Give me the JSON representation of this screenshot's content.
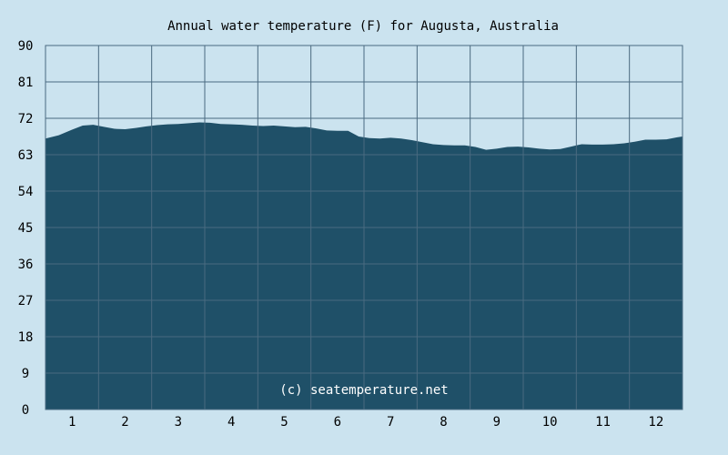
{
  "chart_data": {
    "type": "area",
    "title": "Annual water temperature (F) for Augusta, Australia",
    "xlabel": "",
    "ylabel": "",
    "ylim": [
      0,
      90
    ],
    "yticks": [
      "0",
      "9",
      "18",
      "27",
      "36",
      "45",
      "54",
      "63",
      "72",
      "81",
      "90"
    ],
    "xticks": [
      "1",
      "2",
      "3",
      "4",
      "5",
      "6",
      "7",
      "8",
      "9",
      "10",
      "11",
      "12"
    ],
    "xlim": [
      0.5,
      12.5
    ],
    "grid": true,
    "series": [
      {
        "x": [
          0.5,
          0.75,
          1.0,
          1.2,
          1.4,
          1.6,
          1.8,
          2.0,
          2.2,
          2.4,
          2.6,
          2.8,
          3.0,
          3.2,
          3.4,
          3.6,
          3.8,
          4.0,
          4.2,
          4.4,
          4.6,
          4.8,
          5.0,
          5.2,
          5.4,
          5.6,
          5.8,
          6.0,
          6.2,
          6.4,
          6.6,
          6.8,
          7.0,
          7.2,
          7.4,
          7.6,
          7.8,
          8.0,
          8.2,
          8.4,
          8.6,
          8.8,
          9.0,
          9.2,
          9.4,
          9.6,
          9.8,
          10.0,
          10.2,
          10.4,
          10.6,
          10.8,
          11.0,
          11.2,
          11.4,
          11.6,
          11.8,
          12.0,
          12.2,
          12.4,
          12.5
        ],
        "values": [
          67.0,
          67.8,
          69.2,
          70.2,
          70.4,
          69.9,
          69.4,
          69.3,
          69.6,
          70.0,
          70.3,
          70.5,
          70.6,
          70.8,
          71.0,
          70.9,
          70.6,
          70.5,
          70.4,
          70.2,
          70.1,
          70.2,
          70.0,
          69.8,
          69.9,
          69.5,
          69.0,
          68.9,
          68.9,
          67.5,
          67.1,
          67.0,
          67.2,
          67.0,
          66.6,
          66.1,
          65.6,
          65.4,
          65.3,
          65.3,
          64.9,
          64.2,
          64.5,
          64.9,
          65.0,
          64.8,
          64.5,
          64.3,
          64.4,
          65.0,
          65.6,
          65.5,
          65.5,
          65.6,
          65.8,
          66.2,
          66.7,
          66.7,
          66.8,
          67.3,
          67.5
        ]
      }
    ],
    "colors": {
      "background": "#cbe3ef",
      "plot_background": "#cbe3ef",
      "area_fill": "#1f5068",
      "grid": "#4a6a80",
      "text": "#000000",
      "watermark_text": "#ffffff"
    },
    "watermark": "(c) seatemperature.net"
  }
}
